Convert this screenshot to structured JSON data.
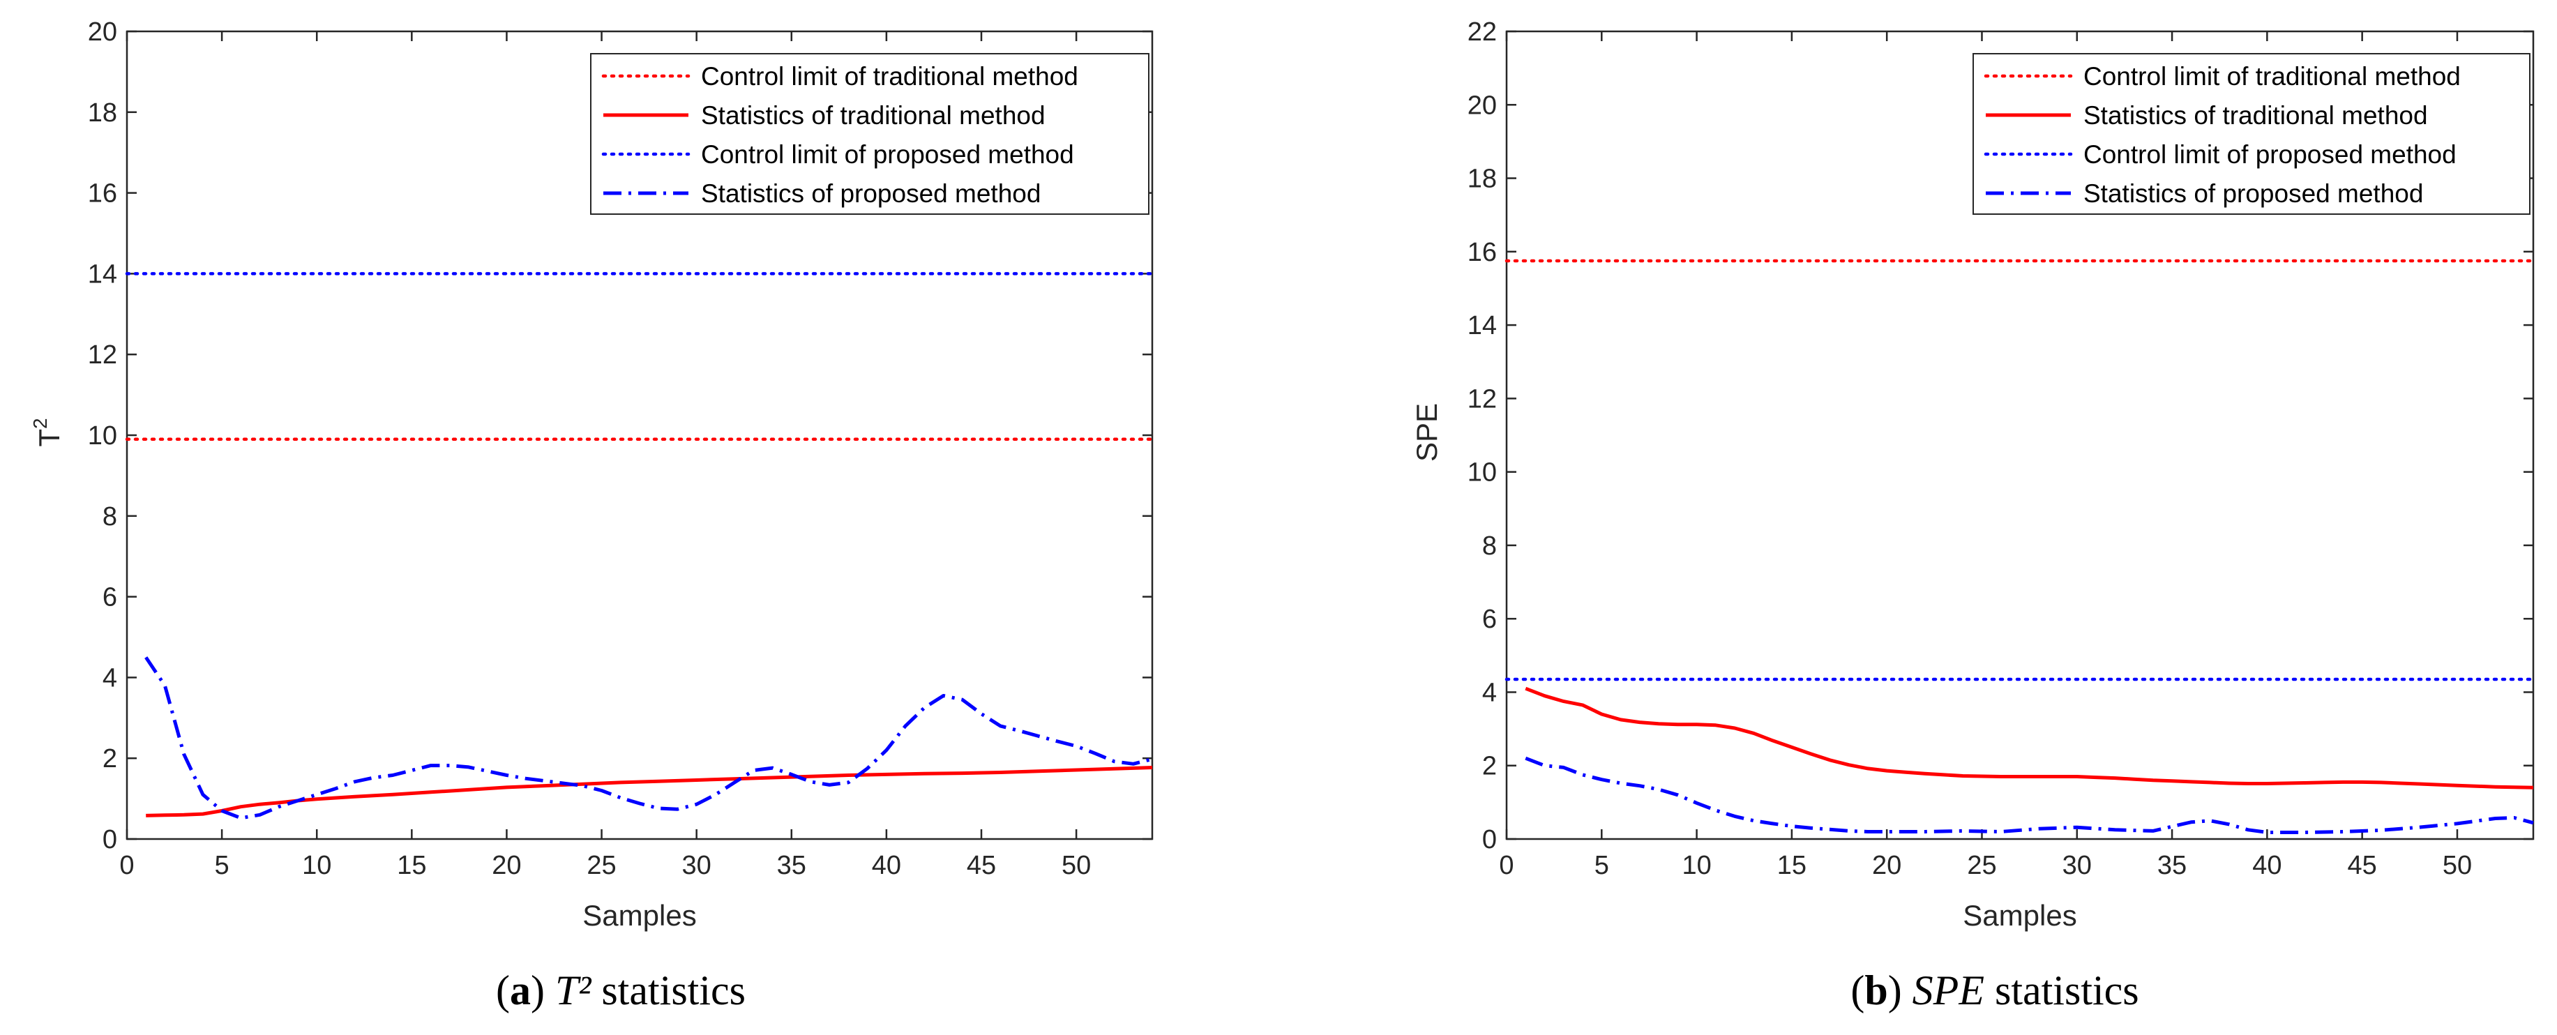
{
  "chart_data": [
    {
      "type": "line",
      "panel_id": "a",
      "caption": {
        "prefix": "(",
        "letter": "a",
        "suffix": ")",
        "symbol": "T²",
        "rest": " statistics"
      },
      "title": "",
      "xlabel": "Samples",
      "ylabel": {
        "base": "T",
        "sup": "2"
      },
      "xlim": [
        0,
        54
      ],
      "ylim": [
        0,
        20
      ],
      "xticks": [
        0,
        5,
        10,
        15,
        20,
        25,
        30,
        35,
        40,
        45,
        50
      ],
      "yticks": [
        0,
        2,
        4,
        6,
        8,
        10,
        12,
        14,
        16,
        18,
        20
      ],
      "legend_position": "top-right",
      "series": [
        {
          "name": "Control limit of traditional method",
          "color": "#ff0000",
          "style": "dotted",
          "x": [
            0,
            54
          ],
          "y": [
            9.9,
            9.9
          ]
        },
        {
          "name": "Statistics of traditional method",
          "color": "#ff0000",
          "style": "solid",
          "x": [
            1,
            2,
            3,
            4,
            5,
            6,
            7,
            8,
            9,
            10,
            12,
            14,
            16,
            18,
            20,
            22,
            24,
            26,
            28,
            30,
            32,
            34,
            36,
            38,
            40,
            42,
            44,
            46,
            48,
            50,
            52,
            54
          ],
          "y": [
            0.58,
            0.59,
            0.6,
            0.62,
            0.7,
            0.8,
            0.86,
            0.9,
            0.95,
            0.99,
            1.05,
            1.1,
            1.16,
            1.22,
            1.28,
            1.32,
            1.36,
            1.4,
            1.43,
            1.46,
            1.49,
            1.52,
            1.55,
            1.58,
            1.6,
            1.62,
            1.63,
            1.65,
            1.68,
            1.71,
            1.74,
            1.77
          ]
        },
        {
          "name": "Control limit of proposed method",
          "color": "#0000ff",
          "style": "dotted",
          "x": [
            0,
            54
          ],
          "y": [
            14.0,
            14.0
          ]
        },
        {
          "name": "Statistics of proposed method",
          "color": "#0000ff",
          "style": "dashdot",
          "x": [
            1,
            2,
            3,
            4,
            5,
            6,
            7,
            8,
            9,
            10,
            11,
            12,
            13,
            14,
            15,
            16,
            17,
            18,
            19,
            20,
            21,
            22,
            23,
            24,
            25,
            26,
            27,
            28,
            29,
            30,
            31,
            32,
            33,
            34,
            35,
            36,
            37,
            38,
            39,
            40,
            41,
            42,
            43,
            44,
            45,
            46,
            47,
            48,
            49,
            50,
            51,
            52,
            53,
            54
          ],
          "y": [
            4.5,
            3.8,
            2.1,
            1.1,
            0.7,
            0.52,
            0.6,
            0.8,
            0.95,
            1.1,
            1.25,
            1.42,
            1.52,
            1.58,
            1.7,
            1.82,
            1.82,
            1.78,
            1.68,
            1.58,
            1.5,
            1.44,
            1.38,
            1.32,
            1.2,
            1.02,
            0.88,
            0.76,
            0.74,
            0.86,
            1.1,
            1.4,
            1.7,
            1.76,
            1.6,
            1.42,
            1.34,
            1.4,
            1.75,
            2.2,
            2.8,
            3.25,
            3.55,
            3.45,
            3.1,
            2.8,
            2.68,
            2.55,
            2.42,
            2.3,
            2.12,
            1.92,
            1.86,
            1.98
          ]
        }
      ]
    },
    {
      "type": "line",
      "panel_id": "b",
      "caption": {
        "prefix": "(",
        "letter": "b",
        "suffix": ")",
        "symbol": "SPE",
        "rest": " statistics"
      },
      "title": "",
      "xlabel": "Samples",
      "ylabel": {
        "base": "SPE",
        "sup": ""
      },
      "xlim": [
        0,
        54
      ],
      "ylim": [
        0,
        22
      ],
      "xticks": [
        0,
        5,
        10,
        15,
        20,
        25,
        30,
        35,
        40,
        45,
        50
      ],
      "yticks": [
        0,
        2,
        4,
        6,
        8,
        10,
        12,
        14,
        16,
        18,
        20,
        22
      ],
      "legend_position": "top-right",
      "series": [
        {
          "name": "Control limit of traditional method",
          "color": "#ff0000",
          "style": "dotted",
          "x": [
            0,
            54
          ],
          "y": [
            15.75,
            15.75
          ]
        },
        {
          "name": "Statistics of traditional method",
          "color": "#ff0000",
          "style": "solid",
          "x": [
            1,
            2,
            3,
            4,
            5,
            6,
            7,
            8,
            9,
            10,
            11,
            12,
            13,
            14,
            15,
            16,
            17,
            18,
            19,
            20,
            21,
            22,
            23,
            24,
            25,
            26,
            27,
            28,
            29,
            30,
            31,
            32,
            33,
            34,
            35,
            36,
            37,
            38,
            39,
            40,
            41,
            42,
            43,
            44,
            45,
            46,
            47,
            48,
            49,
            50,
            51,
            52,
            53,
            54
          ],
          "y": [
            4.1,
            3.9,
            3.75,
            3.65,
            3.4,
            3.25,
            3.18,
            3.14,
            3.12,
            3.12,
            3.1,
            3.02,
            2.88,
            2.68,
            2.5,
            2.32,
            2.15,
            2.02,
            1.92,
            1.86,
            1.82,
            1.78,
            1.75,
            1.72,
            1.71,
            1.7,
            1.7,
            1.7,
            1.7,
            1.7,
            1.68,
            1.66,
            1.63,
            1.6,
            1.58,
            1.56,
            1.54,
            1.52,
            1.51,
            1.51,
            1.52,
            1.53,
            1.54,
            1.55,
            1.55,
            1.54,
            1.52,
            1.5,
            1.48,
            1.46,
            1.44,
            1.42,
            1.41,
            1.4
          ]
        },
        {
          "name": "Control limit of proposed method",
          "color": "#0000ff",
          "style": "dotted",
          "x": [
            0,
            54
          ],
          "y": [
            4.35,
            4.35
          ]
        },
        {
          "name": "Statistics of proposed method",
          "color": "#0000ff",
          "style": "dashdot",
          "x": [
            1,
            2,
            3,
            4,
            5,
            6,
            7,
            8,
            9,
            10,
            11,
            12,
            13,
            14,
            15,
            16,
            17,
            18,
            19,
            20,
            22,
            24,
            26,
            28,
            30,
            32,
            34,
            36,
            37,
            38,
            39,
            40,
            42,
            44,
            46,
            48,
            50,
            52,
            53,
            54
          ],
          "y": [
            2.2,
            2.0,
            1.95,
            1.75,
            1.62,
            1.52,
            1.45,
            1.35,
            1.2,
            0.98,
            0.78,
            0.62,
            0.5,
            0.42,
            0.35,
            0.3,
            0.26,
            0.22,
            0.2,
            0.2,
            0.2,
            0.22,
            0.2,
            0.28,
            0.32,
            0.25,
            0.22,
            0.46,
            0.5,
            0.4,
            0.25,
            0.18,
            0.18,
            0.2,
            0.24,
            0.32,
            0.42,
            0.56,
            0.58,
            0.44
          ]
        }
      ]
    }
  ]
}
